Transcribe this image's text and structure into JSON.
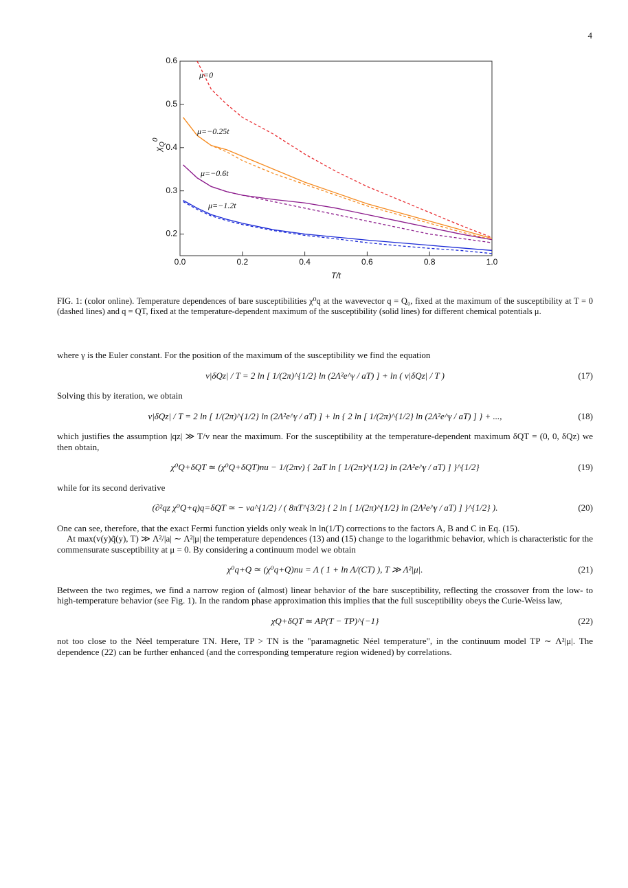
{
  "page_number": "4",
  "chart_data": {
    "type": "line",
    "x": [
      0.01,
      0.055,
      0.1,
      0.15,
      0.2,
      0.3,
      0.4,
      0.5,
      0.6,
      0.7,
      0.8,
      0.9,
      1.0
    ],
    "xlabel": "T/t",
    "ylabel": {
      "base": "χ",
      "sub": "Q",
      "sup": "0"
    },
    "xlim": [
      0,
      1
    ],
    "ylim": [
      0.15,
      0.6
    ],
    "xticks": [
      {
        "value": 0,
        "label": "0.0"
      },
      0.2,
      0.4,
      0.6,
      0.8,
      {
        "value": 1,
        "label": "1.0"
      }
    ],
    "yticks": [
      0.2,
      0.3,
      0.4,
      0.5,
      0.6
    ],
    "series": [
      {
        "color": "#e8262a",
        "dashed": true,
        "values": [
          null,
          0.6,
          0.535,
          0.5,
          0.47,
          0.431,
          0.385,
          0.345,
          0.31,
          0.28,
          0.25,
          0.22,
          0.192
        ]
      },
      {
        "color": "#f58a1f",
        "dashed": false,
        "values": [
          0.47,
          0.428,
          0.405,
          0.395,
          0.38,
          0.35,
          0.32,
          0.295,
          0.27,
          0.25,
          0.23,
          0.21,
          0.19
        ]
      },
      {
        "color": "#f58a1f",
        "dashed": true,
        "values": [
          0.47,
          0.428,
          0.405,
          0.39,
          0.37,
          0.34,
          0.315,
          0.29,
          0.265,
          0.245,
          0.225,
          0.205,
          0.187
        ]
      },
      {
        "color": "#8b1a8b",
        "dashed": false,
        "values": [
          0.36,
          0.33,
          0.31,
          0.298,
          0.29,
          0.28,
          0.272,
          0.26,
          0.245,
          0.23,
          0.215,
          0.2,
          0.187
        ]
      },
      {
        "color": "#8b1a8b",
        "dashed": true,
        "values": [
          0.36,
          0.33,
          0.31,
          0.298,
          0.29,
          0.275,
          0.26,
          0.245,
          0.23,
          0.215,
          0.2,
          0.19,
          0.18
        ]
      },
      {
        "color": "#1c2bd6",
        "dashed": false,
        "values": [
          0.278,
          0.26,
          0.245,
          0.234,
          0.225,
          0.21,
          0.2,
          0.193,
          0.186,
          0.18,
          0.174,
          0.168,
          0.162
        ]
      },
      {
        "color": "#1c2bd6",
        "dashed": true,
        "values": [
          0.275,
          0.257,
          0.242,
          0.231,
          0.222,
          0.208,
          0.197,
          0.189,
          0.18,
          0.173,
          0.167,
          0.162,
          0.155
        ]
      }
    ],
    "annotations": [
      "μ=0",
      "μ=−0.25t",
      "μ=−0.6t",
      "μ=−1.2t"
    ]
  },
  "caption": "FIG. 1: (color online). Temperature dependences of bare susceptibilities χ⁰q at the wavevector q = Q₀, fixed at the maximum of the susceptibility at T = 0 (dashed lines) and q = QT, fixed at the temperature-dependent maximum of the susceptibility (solid lines) for different chemical potentials μ.",
  "body": [
    {
      "text": "where γ is the Euler constant. For the position of the maximum of the susceptibility we find the equation"
    },
    {
      "equation": "v|δQz| / T = 2 ln [ 1/(2π)^{1/2} ln (2Λ²e^γ / aT) ] + ln ( v|δQz| / T )",
      "number": "(17)"
    },
    {
      "text": "Solving this by iteration, we obtain"
    },
    {
      "equation": "v|δQz| / T = 2 ln [ 1/(2π)^{1/2} ln (2Λ²e^γ / aT) ] + ln { 2 ln [ 1/(2π)^{1/2} ln (2Λ²e^γ / aT) ] } + ...,",
      "number": "(18)"
    },
    {
      "text": "which justifies the assumption |qz| ≫ T/v near the maximum. For the susceptibility at the temperature-dependent maximum δQT = (0, 0, δQz) we then obtain,"
    },
    {
      "equation": "χ⁰Q+δQT ≃ (χ⁰Q+δQT)nu − 1/(2πv) { 2aT ln [ 1/(2π)^{1/2} ln (2Λ²e^γ / aT) ] }^{1/2}",
      "number": "(19)"
    },
    {
      "text": "while for its second derivative"
    },
    {
      "equation": "(∂²qz χ⁰Q+q)q=δQT ≃ − va^{1/2} / ( 8πT^{3/2} { 2 ln [ 1/(2π)^{1/2} ln (2Λ²e^γ / aT) ] }^{1/2} ).",
      "number": "(20)"
    },
    {
      "text": "One can see, therefore, that the exact Fermi function yields only weak ln ln(1/T) corrections to the factors A, B and C in Eq. (15)."
    },
    {
      "text": "At max(v(y)q̃(y), T) ≫ Λ²/|a| ∼ Λ²|μ| the temperature dependences (13) and (15) change to the logarithmic behavior, which is characteristic for the commensurate susceptibility at μ = 0. By considering a continuum model we obtain",
      "indent": true
    },
    {
      "equation": "χ⁰q+Q ≃ (χ⁰q+Q)nu = Λ ( 1 + ln Λ/(CT) ),   T ≫ Λ²|μ|.",
      "number": "(21)"
    },
    {
      "text": "Between the two regimes, we find a narrow region of (almost) linear behavior of the bare susceptibility, reflecting the crossover from the low- to high-temperature behavior (see Fig. 1). In the random phase approximation this implies that the full susceptibility obeys the Curie-Weiss law,"
    },
    {
      "equation": "χQ+δQT ≃ AP(T − TP)^{−1}",
      "number": "(22)"
    },
    {
      "text": "not too close to the Néel temperature TN. Here, TP > TN is the \"paramagnetic Néel temperature\", in the continuum model TP ∼ Λ²|μ|. The dependence (22) can be further enhanced (and the corresponding temperature region widened) by correlations."
    }
  ]
}
